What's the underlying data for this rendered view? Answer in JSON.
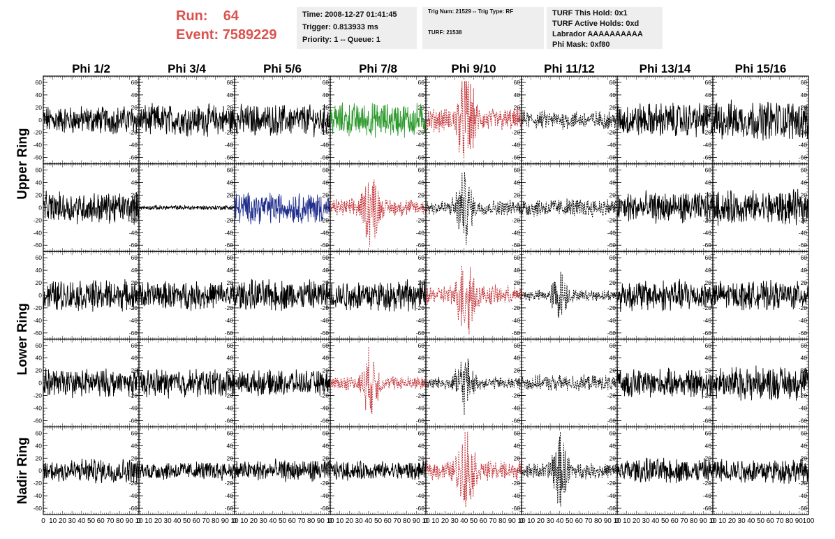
{
  "header": {
    "run_label": "Run:",
    "run_value": "64",
    "event_label": "Event:",
    "event_value": "7589229",
    "run_color": "#d9534f"
  },
  "info_boxes": {
    "time": "Time: 2008-12-27 01:41:45",
    "trigger": "Trigger: 0.813933 ms",
    "priority": "Priority: 1 -- Queue: 1",
    "trig_num": "Trig Num: 21529 -- Trig Type: RF",
    "turf": "TURF: 21538",
    "turf_hold": "TURF This Hold: 0x1",
    "turf_active": "TURF Active Holds: 0xd",
    "labrador": "Labrador AAAAAAAAAA",
    "phi_mask": "Phi Mask: 0xf80"
  },
  "chart_data": {
    "type": "line",
    "columns": [
      "Phi 1/2",
      "Phi 3/4",
      "Phi 5/6",
      "Phi 7/8",
      "Phi 9/10",
      "Phi 11/12",
      "Phi 13/14",
      "Phi 15/16"
    ],
    "rows": [
      "Upper Ring",
      "Upper Ring",
      "Lower Ring",
      "Lower Ring",
      "Nadir Ring"
    ],
    "row_labels": [
      "Upper Ring",
      "Lower Ring",
      "Nadir Ring"
    ],
    "ylim": [
      -70,
      70
    ],
    "xlim": [
      0,
      100
    ],
    "y_ticks": [
      -60,
      -40,
      -20,
      0,
      20,
      40,
      60
    ],
    "x_ticks": [
      0,
      10,
      20,
      30,
      40,
      50,
      60,
      70,
      80,
      90,
      100
    ],
    "x_tick_labels_panel": [
      "0",
      "10",
      "20",
      "30",
      "40",
      "50",
      "60",
      "70",
      "80",
      "90",
      "10"
    ],
    "x_tick_labels_last": [
      "0",
      "10",
      "20",
      "30",
      "40",
      "50",
      "60",
      "70",
      "80",
      "90",
      "100"
    ],
    "colors": {
      "black": "#000000",
      "red": "#c0282d",
      "green": "#2e9a2e",
      "blue": "#1f2d8c"
    },
    "panels": [
      [
        "black",
        "black",
        "black",
        "green",
        "red-dashed",
        "black-dashed",
        "black",
        "black"
      ],
      [
        "black",
        "black-flat",
        "blue",
        "red-dashed",
        "black-dashed",
        "black-dashed",
        "black",
        "black"
      ],
      [
        "black",
        "black",
        "black",
        "black",
        "red-dashed",
        "black-dashed",
        "black",
        "black"
      ],
      [
        "black",
        "black",
        "black",
        "red-dashed",
        "black-dashed",
        "black-dashed",
        "black",
        "black"
      ],
      [
        "black",
        "black",
        "black",
        "black",
        "red-dashed",
        "black-dashed",
        "black",
        "black"
      ]
    ],
    "panel_amplitudes": [
      [
        18,
        20,
        20,
        22,
        30,
        12,
        22,
        25
      ],
      [
        20,
        3,
        20,
        22,
        20,
        12,
        20,
        22
      ],
      [
        20,
        18,
        20,
        20,
        25,
        14,
        20,
        18
      ],
      [
        18,
        18,
        16,
        18,
        16,
        10,
        18,
        22
      ],
      [
        16,
        12,
        14,
        12,
        25,
        20,
        16,
        16
      ]
    ],
    "panel_bursts": [
      [
        0,
        0,
        0,
        0,
        1,
        0,
        0,
        0
      ],
      [
        0,
        0,
        0,
        1,
        1,
        0,
        0,
        0
      ],
      [
        0,
        0,
        0,
        0,
        1,
        1,
        0,
        0
      ],
      [
        0,
        0,
        0,
        1,
        1,
        0,
        0,
        0
      ],
      [
        0,
        0,
        0,
        0,
        1,
        1,
        0,
        0
      ]
    ]
  }
}
